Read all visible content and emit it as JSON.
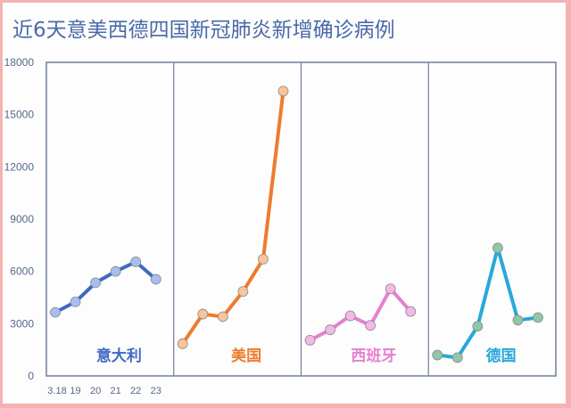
{
  "title": "近6天意美西德四国新冠肺炎新增确诊病例",
  "colors": {
    "background_border": "#f3b4b1",
    "frame": "#6e7f96",
    "title": "#4a6aa8"
  },
  "chart_data": {
    "type": "line",
    "title": "近6天意美西德四国新冠肺炎新增确诊病例",
    "xlabel": "",
    "ylabel": "",
    "ylim": [
      0,
      18000
    ],
    "y_ticks": [
      "0",
      "3000",
      "6000",
      "9000",
      "12000",
      "15000",
      "18000"
    ],
    "x": [
      "3.18",
      "19",
      "20",
      "21",
      "22",
      "23"
    ],
    "grid": false,
    "layout": "four side-by-side panels sharing one y-axis",
    "series": [
      {
        "name": "意大利",
        "color": "#3f6ac4",
        "marker": "#a9bdf0",
        "values": [
          3650,
          4250,
          5350,
          6000,
          6550,
          5550
        ]
      },
      {
        "name": "美国",
        "color": "#ee7b2e",
        "marker": "#f9c49c",
        "values": [
          1850,
          3550,
          3400,
          4850,
          6700,
          16350
        ]
      },
      {
        "name": "西班牙",
        "color": "#e67fcf",
        "marker": "#f4b8e6",
        "values": [
          2050,
          2650,
          3450,
          2900,
          5000,
          3700
        ]
      },
      {
        "name": "德国",
        "color": "#27a8d9",
        "marker": "#8fc7a9",
        "values": [
          1200,
          1050,
          2850,
          7350,
          3200,
          3350
        ]
      }
    ]
  }
}
